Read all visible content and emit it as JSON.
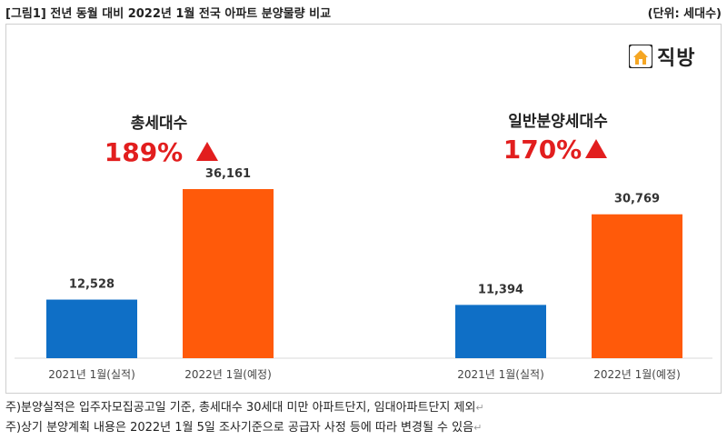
{
  "header": {
    "title": "[그림1] 전년 동월 대비 2022년 1월 전국 아파트 분양물량 비교",
    "unit": "(단위: 세대수)"
  },
  "logo": {
    "text": "직방",
    "icon": "house-logo-icon"
  },
  "colors": {
    "blue": "#0f6fc6",
    "orange": "#ff5a0a",
    "red": "#e21e1e"
  },
  "chart_data": [
    {
      "type": "bar",
      "title": "총세대수",
      "growth": "189%",
      "categories": [
        "2021년 1월(실적)",
        "2022년 1월(예정)"
      ],
      "values": [
        12528,
        36161
      ],
      "value_labels": [
        "12,528",
        "36,161"
      ]
    },
    {
      "type": "bar",
      "title": "일반분양세대수",
      "growth": "170%",
      "categories": [
        "2021년 1월(실적)",
        "2022년 1월(예정)"
      ],
      "values": [
        11394,
        30769
      ],
      "value_labels": [
        "11,394",
        "30,769"
      ]
    }
  ],
  "notes": [
    "주)분양실적은 입주자모집공고일 기준, 총세대수 30세대 미만 아파트단지, 임대아파트단지 제외",
    "주)상기 분양계획 내용은 2022년 1월 5일 조사기준으로 공급자 사정 등에 따라 변경될 수 있음"
  ]
}
